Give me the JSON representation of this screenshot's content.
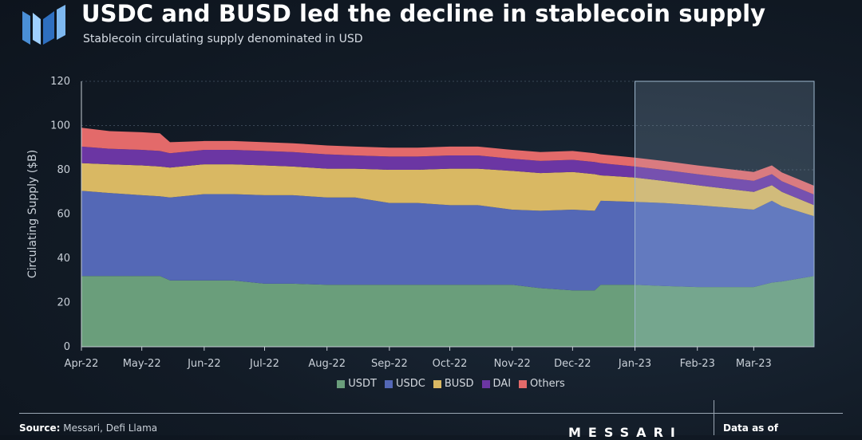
{
  "header": {
    "title": "USDC and BUSD led the decline in stablecoin supply",
    "subtitle": "Stablecoin circulating supply denominated in USD",
    "logo_icon": "messari-logo-icon"
  },
  "chart_data": {
    "type": "area",
    "stacked": true,
    "xlabel": "",
    "ylabel": "Circulating Supply ($B)",
    "ylim": [
      0,
      120
    ],
    "yticks": [
      0,
      20,
      40,
      60,
      80,
      100,
      120
    ],
    "x_tick_labels": [
      "Apr-22",
      "May-22",
      "Jun-22",
      "Jul-22",
      "Aug-22",
      "Sep-22",
      "Oct-22",
      "Nov-22",
      "Dec-22",
      "Jan-23",
      "Feb-23",
      "Mar-23"
    ],
    "x": [
      "2022-04-01",
      "2022-04-15",
      "2022-05-01",
      "2022-05-10",
      "2022-05-15",
      "2022-06-01",
      "2022-06-15",
      "2022-07-01",
      "2022-07-15",
      "2022-08-01",
      "2022-08-15",
      "2022-09-01",
      "2022-09-15",
      "2022-10-01",
      "2022-10-15",
      "2022-11-01",
      "2022-11-15",
      "2022-12-01",
      "2022-12-12",
      "2022-12-15",
      "2023-01-01",
      "2023-01-15",
      "2023-02-01",
      "2023-02-15",
      "2023-03-01",
      "2023-03-10",
      "2023-03-15",
      "2023-03-31"
    ],
    "series": [
      {
        "name": "USDT",
        "color": "#6a9e7b",
        "values": [
          32,
          32,
          32,
          32,
          30,
          30,
          30,
          28.5,
          28.5,
          28,
          28,
          28,
          28,
          28,
          28,
          28,
          26.5,
          25.5,
          25.5,
          28,
          28,
          27.5,
          27,
          27,
          27,
          29,
          29.5,
          32
        ]
      },
      {
        "name": "USDC",
        "color": "#5468b6",
        "values": [
          38.5,
          37.5,
          36.5,
          36,
          37.5,
          39,
          39,
          40,
          40,
          39.5,
          39.5,
          37,
          37,
          36,
          36,
          34,
          35,
          36.5,
          36,
          38,
          37.5,
          37.5,
          37,
          36,
          35,
          37,
          34,
          27
        ]
      },
      {
        "name": "BUSD",
        "color": "#d9b863",
        "values": [
          12.5,
          13,
          13.5,
          13.5,
          13.5,
          13.5,
          13.5,
          13.5,
          13,
          13,
          13,
          15,
          15,
          16.5,
          16.5,
          17.5,
          17,
          17,
          16.5,
          11.5,
          11,
          10,
          9,
          8.5,
          8,
          7,
          6.5,
          5
        ]
      },
      {
        "name": "DAI",
        "color": "#6b36a3",
        "values": [
          7.5,
          7,
          7,
          7,
          6.5,
          6.5,
          6.5,
          6.5,
          6.5,
          6.5,
          6,
          6,
          6,
          6,
          6,
          5.5,
          5.5,
          5.5,
          5.5,
          5.5,
          5,
          5,
          5,
          5,
          5,
          5,
          4.8,
          4.8
        ]
      },
      {
        "name": "Others",
        "color": "#e36a6a",
        "values": [
          8.5,
          8,
          8,
          8,
          5,
          4,
          4,
          4,
          4,
          4,
          4,
          4,
          4,
          4,
          4,
          4,
          4,
          4,
          4,
          4,
          4,
          4,
          4,
          4,
          4,
          4,
          4,
          4
        ]
      }
    ],
    "highlight_range": [
      "2023-01-01",
      "2023-03-31"
    ],
    "grid": true,
    "legend_position": "bottom"
  },
  "footer": {
    "source_label": "Source:",
    "source_text": "Messari, Defi Llama",
    "brand": "MESSARI",
    "date_label": "Data as of"
  }
}
